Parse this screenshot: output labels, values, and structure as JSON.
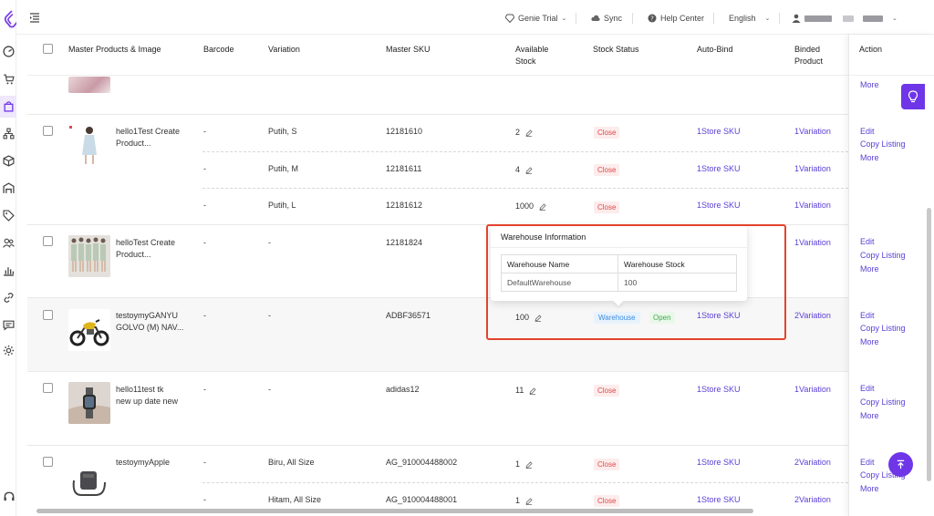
{
  "topbar": {
    "genie_trial": "Genie Trial",
    "sync": "Sync",
    "help_center": "Help Center",
    "language": "English"
  },
  "table": {
    "headers": {
      "product": "Master Products & Image",
      "barcode": "Barcode",
      "variation": "Variation",
      "master_sku": "Master SKU",
      "available_stock_1": "Available",
      "available_stock_2": "Stock",
      "stock_status": "Stock Status",
      "auto_bind": "Auto-Bind",
      "binded_product_1": "Binded",
      "binded_product_2": "Product",
      "action": "Action"
    },
    "rows": [
      {
        "name_1": "hello1Test Create",
        "name_2": "Product...",
        "variants": [
          {
            "barcode": "-",
            "variation": "Putih, S",
            "sku": "12181610",
            "stock": "2",
            "status": "Close",
            "auto_bind": "1Store SKU",
            "binded": "1Variation"
          },
          {
            "barcode": "-",
            "variation": "Putih, M",
            "sku": "12181611",
            "stock": "4",
            "status": "Close",
            "auto_bind": "1Store SKU",
            "binded": "1Variation"
          },
          {
            "barcode": "-",
            "variation": "Putih, L",
            "sku": "12181612",
            "stock": "1000",
            "status": "Close",
            "auto_bind": "1Store SKU",
            "binded": "1Variation"
          }
        ]
      },
      {
        "name_1": "helloTest Create",
        "name_2": "Product...",
        "variants": [
          {
            "barcode": "-",
            "variation": "-",
            "sku": "12181824",
            "binded": "1Variation"
          }
        ]
      },
      {
        "name_1": "testoymyGANYU",
        "name_2": "GOLVO (M) NAV...",
        "variants": [
          {
            "barcode": "-",
            "variation": "-",
            "sku": "ADBF36571",
            "stock": "100",
            "warehouse": "Warehouse",
            "status": "Open",
            "auto_bind": "1Store SKU",
            "binded": "2Variation"
          }
        ]
      },
      {
        "name_1": "hello11test tk",
        "name_2": "new up date new",
        "variants": [
          {
            "barcode": "-",
            "variation": "-",
            "sku": "adidas12",
            "stock": "11",
            "status": "Close",
            "auto_bind": "1Store SKU",
            "binded": "1Variation"
          }
        ]
      },
      {
        "name_1": "testoymyApple",
        "variants": [
          {
            "barcode": "-",
            "variation": "Biru, All Size",
            "sku": "AG_910004488002",
            "stock": "1",
            "status": "Close",
            "auto_bind": "1Store SKU",
            "binded": "2Variation"
          },
          {
            "barcode": "-",
            "variation": "Hitam, All Size",
            "sku": "AG_910004488001",
            "stock": "1",
            "status": "Close",
            "auto_bind": "1Store SKU",
            "binded": "2Variation"
          }
        ]
      }
    ]
  },
  "actions": {
    "edit": "Edit",
    "copy_listing": "Copy Listing",
    "more": "More"
  },
  "popover": {
    "title": "Warehouse Information",
    "col_name": "Warehouse Name",
    "col_stock": "Warehouse Stock",
    "warehouse_name": "DefaultWarehouse",
    "warehouse_stock": "100"
  },
  "colors": {
    "accent": "#6f36e8",
    "link": "#5b3fd6",
    "close_tag": "#e04a4a",
    "open_tag": "#3eaa48",
    "highlight_border": "#e4432d"
  }
}
